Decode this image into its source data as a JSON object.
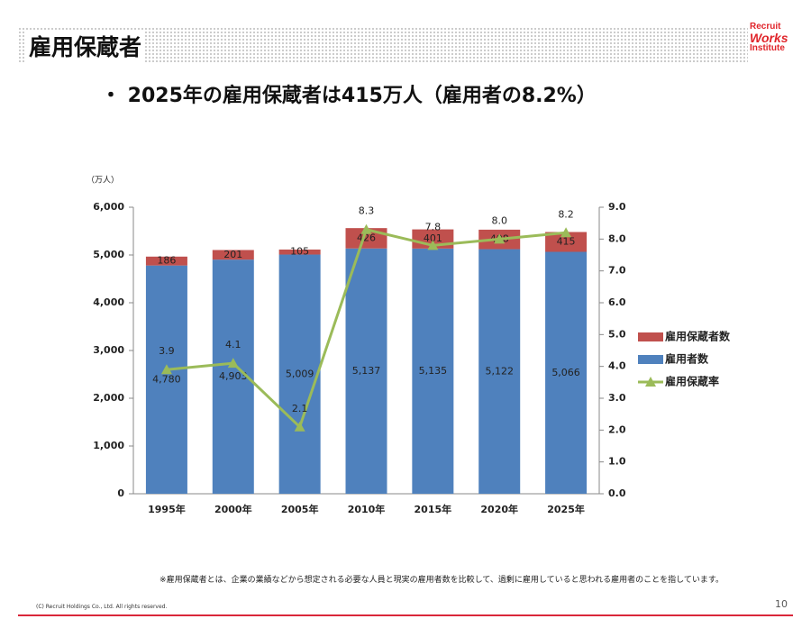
{
  "header": {
    "title": "雇用保蔵者"
  },
  "logo": [
    "Recruit",
    "Works",
    "Institute"
  ],
  "headline": "・ 2025年の雇用保蔵者は415万人（雇用者の8.2%）",
  "footnote": "※雇用保蔵者とは、企業の業績などから想定される必要な人員と現実の雇用者数を比較して、過剰に雇用していると思われる雇用者のことを指しています。",
  "copyright": "(C) Recruit Holdings Co., Ltd. All rights reserved.",
  "page_number": "10",
  "chart_data": {
    "type": "bar",
    "stacked": true,
    "y_label": "（万人）",
    "categories": [
      "1995年",
      "2000年",
      "2005年",
      "2010年",
      "2015年",
      "2020年",
      "2025年"
    ],
    "series": [
      {
        "name": "雇用者数",
        "type": "bar",
        "color": "#4f81bd",
        "values": [
          4780,
          4903,
          5009,
          5137,
          5135,
          5122,
          5066
        ],
        "value_labels": [
          "4,780",
          "4,903",
          "5,009",
          "5,137",
          "5,135",
          "5,122",
          "5,066"
        ]
      },
      {
        "name": "雇用保蔵者数",
        "type": "bar",
        "color": "#c0504d",
        "values": [
          186,
          201,
          105,
          426,
          401,
          408,
          415
        ]
      },
      {
        "name": "雇用保蔵率",
        "type": "line",
        "axis": "y2",
        "color": "#9bbb59",
        "values": [
          3.9,
          4.1,
          2.1,
          8.3,
          7.8,
          8.0,
          8.2
        ],
        "value_labels": [
          "3.9",
          "4.1",
          "2.1",
          "8.3",
          "7.8",
          "8.0",
          "8.2"
        ]
      }
    ],
    "ylim": [
      0,
      6000
    ],
    "yticks": [
      0,
      {
        "value": 1000,
        "label": "1,000"
      },
      {
        "value": 2000,
        "label": "2,000"
      },
      {
        "value": 3000,
        "label": "3,000"
      },
      {
        "value": 4000,
        "label": "4,000"
      },
      {
        "value": 5000,
        "label": "5,000"
      },
      {
        "value": 6000,
        "label": "6,000"
      }
    ],
    "y2lim": [
      0,
      9
    ],
    "y2ticks": [
      {
        "value": 0,
        "label": "0.0"
      },
      {
        "value": 1,
        "label": "1.0"
      },
      {
        "value": 2,
        "label": "2.0"
      },
      {
        "value": 3,
        "label": "3.0"
      },
      {
        "value": 4,
        "label": "4.0"
      },
      {
        "value": 5,
        "label": "5.0"
      },
      {
        "value": 6,
        "label": "6.0"
      },
      {
        "value": 7,
        "label": "7.0"
      },
      {
        "value": 8,
        "label": "8.0"
      },
      {
        "value": 9,
        "label": "9.0"
      }
    ],
    "grid": false,
    "legend": "right"
  }
}
